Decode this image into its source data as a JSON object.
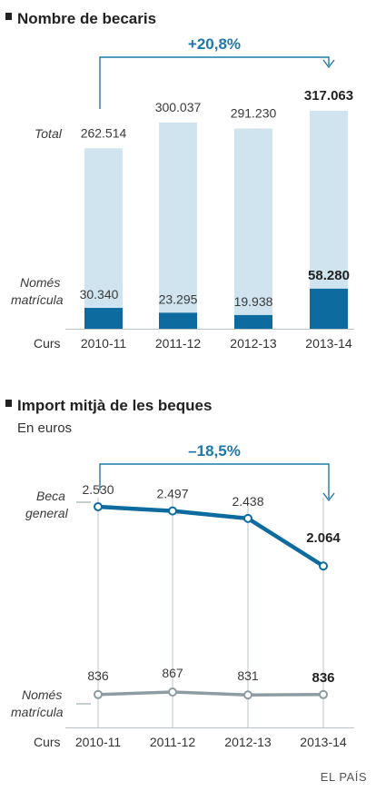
{
  "source": "EL PAÍS",
  "colors": {
    "accent": "#1f79a8",
    "bar_light": "#cfe4ef",
    "bar_dark": "#0d6b9f",
    "line_grey": "#8c9ca2",
    "grid": "#b9c4c9"
  },
  "chart_data": [
    {
      "type": "bar",
      "title": "Nombre de becaris",
      "change_label": "+20,8%",
      "x_prefix": "Curs",
      "categories": [
        "2010-11",
        "2011-12",
        "2012-13",
        "2013-14"
      ],
      "series": [
        {
          "name": "Total",
          "values": [
            262514,
            300037,
            291230,
            317063
          ],
          "labels": [
            "262.514",
            "300.037",
            "291.230",
            "317.063"
          ]
        },
        {
          "name": "Només matrícula",
          "values": [
            30340,
            23295,
            19938,
            58280
          ],
          "labels": [
            "30.340",
            "23.295",
            "19.938",
            "58.280"
          ]
        }
      ],
      "side_labels": {
        "total": "Total",
        "nomes_1": "Només",
        "nomes_2": "matrícula"
      },
      "ylim": [
        0,
        317063
      ]
    },
    {
      "type": "line",
      "title": "Import mitjà de les beques",
      "subtitle": "En euros",
      "change_label": "–18,5%",
      "x_prefix": "Curs",
      "categories": [
        "2010-11",
        "2011-12",
        "2012-13",
        "2013-14"
      ],
      "series": [
        {
          "name": "Beca general",
          "values": [
            2530,
            2497,
            2438,
            2064
          ],
          "labels": [
            "2.530",
            "2.497",
            "2.438",
            "2.064"
          ]
        },
        {
          "name": "Només matrícula",
          "values": [
            836,
            867,
            831,
            836
          ],
          "labels": [
            "836",
            "867",
            "831",
            "836"
          ]
        }
      ],
      "side_labels": {
        "beca_1": "Beca",
        "beca_2": "general",
        "nomes_1": "Només",
        "nomes_2": "matrícula"
      },
      "ylim": [
        0,
        2600
      ]
    }
  ]
}
